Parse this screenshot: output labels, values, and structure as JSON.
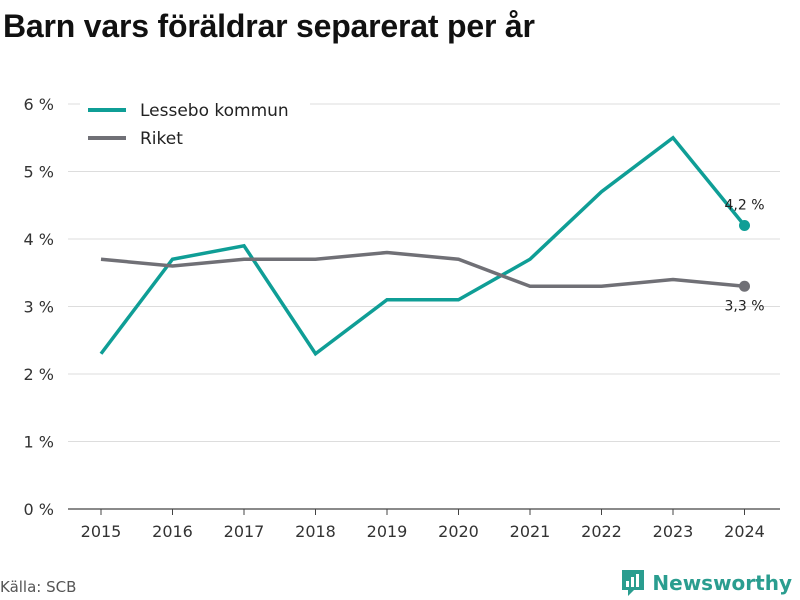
{
  "title": "Barn vars föräldrar separerat per år",
  "source": "Källa: SCB",
  "brand": "Newsworthy",
  "colors": {
    "lessebo": "#0f9e96",
    "riket": "#707076",
    "grid": "#dddddd",
    "axis": "#444444",
    "brand": "#2a9d8f"
  },
  "chart_data": {
    "type": "line",
    "title": "Barn vars föräldrar separerat per år",
    "x": [
      "2015",
      "2016",
      "2017",
      "2018",
      "2019",
      "2020",
      "2021",
      "2022",
      "2023",
      "2024"
    ],
    "ylim": [
      0,
      6
    ],
    "yticks": [
      0,
      1,
      2,
      3,
      4,
      5,
      6
    ],
    "ytick_labels": [
      "0 %",
      "1 %",
      "2 %",
      "3 %",
      "4 %",
      "5 %",
      "6 %"
    ],
    "grid": true,
    "legend": "top-left",
    "series": [
      {
        "name": "Lessebo kommun",
        "color": "#0f9e96",
        "values": [
          2.3,
          3.7,
          3.9,
          2.3,
          3.1,
          3.1,
          3.7,
          4.7,
          5.5,
          4.2
        ],
        "end_label": "4,2 %"
      },
      {
        "name": "Riket",
        "color": "#707076",
        "values": [
          3.7,
          3.6,
          3.7,
          3.7,
          3.8,
          3.7,
          3.3,
          3.3,
          3.4,
          3.3
        ],
        "end_label": "3,3 %"
      }
    ]
  }
}
